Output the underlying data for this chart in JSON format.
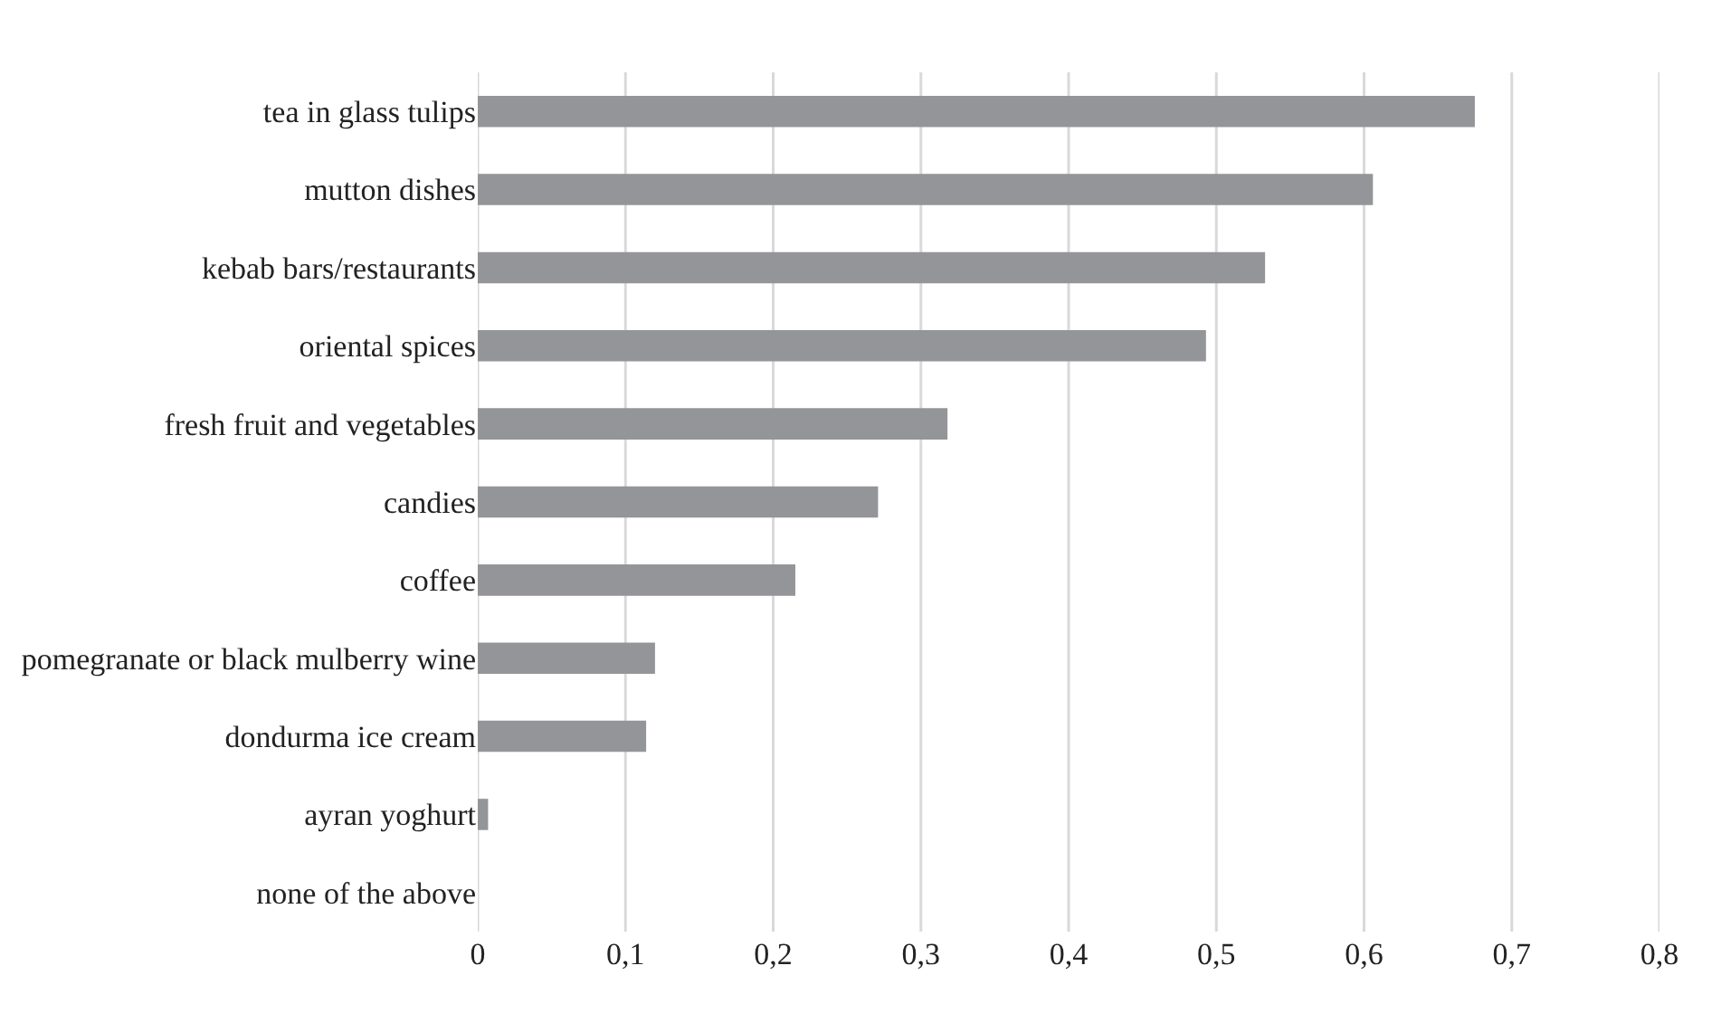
{
  "chart_data": {
    "type": "bar",
    "orientation": "horizontal",
    "categories": [
      "tea in glass tulips",
      "mutton dishes",
      "kebab bars/restaurants",
      "oriental spices",
      "fresh fruit and vegetables",
      "candies",
      "coffee",
      "pomegranate or black mulberry wine",
      "dondurma ice cream",
      "ayran yoghurt",
      "none of the above"
    ],
    "values": [
      0.675,
      0.606,
      0.533,
      0.493,
      0.318,
      0.271,
      0.215,
      0.12,
      0.114,
      0.007,
      0
    ],
    "color": "#939598",
    "xlim": [
      0,
      0.8
    ],
    "xticks": [
      {
        "value": 0,
        "label": "0"
      },
      {
        "value": 0.1,
        "label": "0,1"
      },
      {
        "value": 0.2,
        "label": "0,2"
      },
      {
        "value": 0.3,
        "label": "0,3"
      },
      {
        "value": 0.4,
        "label": "0,4"
      },
      {
        "value": 0.5,
        "label": "0,5"
      },
      {
        "value": 0.6,
        "label": "0,6"
      },
      {
        "value": 0.7,
        "label": "0,7"
      },
      {
        "value": 0.8,
        "label": "0,8"
      }
    ],
    "grid": "x"
  }
}
